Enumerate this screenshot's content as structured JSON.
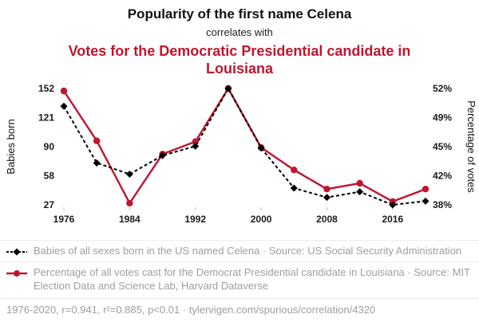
{
  "theme": {
    "accent": "#c0152f",
    "text_gray": "#9e9e9e",
    "tick_black": "#1a1a1a"
  },
  "header": {
    "title": "Popularity of the first name Celena",
    "subtitle": "correlates with",
    "title2": "Votes for the Democratic Presidential candidate in Louisiana"
  },
  "chart_data": {
    "type": "line",
    "x": [
      1976,
      1980,
      1984,
      1988,
      1992,
      1996,
      2000,
      2004,
      2008,
      2012,
      2016,
      2020
    ],
    "x_ticks": [
      1976,
      1984,
      1992,
      2000,
      2008,
      2016
    ],
    "series": [
      {
        "name": "Babies born (Celena)",
        "axis": "left",
        "color": "#000000",
        "style": "dashed-diamond",
        "values": [
          133,
          72,
          60,
          80,
          90,
          152,
          88,
          45,
          35,
          41,
          27,
          31
        ]
      },
      {
        "name": "Percentage of votes (Democrat, Louisiana)",
        "axis": "right",
        "color": "#c0152f",
        "style": "solid-circle",
        "values": [
          51.7,
          45.7,
          38.2,
          44.1,
          45.6,
          52.0,
          44.9,
          42.2,
          39.9,
          40.6,
          38.4,
          39.9
        ]
      }
    ],
    "left_axis": {
      "label": "Babies born",
      "ticks": [
        "27",
        "58",
        "90",
        "121",
        "152"
      ],
      "range": [
        27,
        152
      ],
      "color": "#1a1a1a"
    },
    "right_axis": {
      "label": "Percentage of votes",
      "ticks": [
        "38%",
        "42%",
        "45%",
        "49%",
        "52%"
      ],
      "range": [
        38,
        52
      ],
      "color": "#c0152f"
    },
    "grid": false,
    "legend_position": "bottom"
  },
  "legend": {
    "items": [
      {
        "marker": "black-dashed-diamond",
        "label": "Babies of all sexes born in the US named Celena · Source: US Social Security Administration"
      },
      {
        "marker": "red-solid-circle",
        "label": "Percentage of all votes cast for the Democrat Presidential candidate in Louisiana · Source: MIT Election Data and Science Lab, Harvard Dataverse"
      }
    ]
  },
  "footer": {
    "stats": "1976-2020, r=0.941, r²=0.885, p<0.01 · tylervigen.com/spurious/correlation/4320"
  }
}
